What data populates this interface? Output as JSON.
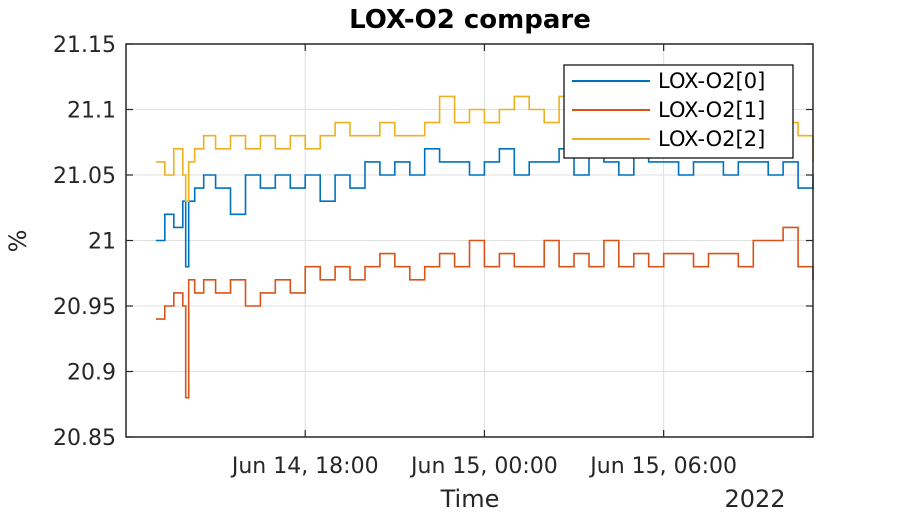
{
  "chart_data": {
    "type": "line",
    "title": "LOX-O2 compare",
    "xlabel": "Time",
    "ylabel": "%",
    "x_year_label": "2022",
    "x_unit": "hours since Jun 14, 00:00",
    "xlim": [
      12.0,
      35.0
    ],
    "ylim": [
      20.85,
      21.15
    ],
    "xticks": [
      {
        "value": 18,
        "label": "Jun 14, 18:00"
      },
      {
        "value": 24,
        "label": "Jun 15, 00:00"
      },
      {
        "value": 30,
        "label": "Jun 15, 06:00"
      }
    ],
    "yticks": [
      {
        "value": 21.15,
        "label": "21.15"
      },
      {
        "value": 21.1,
        "label": "21.1"
      },
      {
        "value": 21.05,
        "label": "21.05"
      },
      {
        "value": 21.0,
        "label": "21"
      },
      {
        "value": 20.95,
        "label": "20.95"
      },
      {
        "value": 20.9,
        "label": "20.9"
      },
      {
        "value": 20.85,
        "label": "20.85"
      }
    ],
    "grid": true,
    "legend_location": "top-right",
    "series": [
      {
        "name": "LOX-O2[0]",
        "color": "#0072BD",
        "x": [
          13.0,
          13.3,
          13.6,
          13.9,
          14.0,
          14.1,
          14.3,
          14.6,
          15.0,
          15.5,
          16.0,
          16.5,
          17.0,
          17.5,
          18.0,
          18.5,
          19.0,
          19.5,
          20.0,
          20.5,
          21.0,
          21.5,
          22.0,
          22.5,
          23.0,
          23.5,
          24.0,
          24.5,
          25.0,
          25.5,
          26.0,
          26.5,
          27.0,
          27.5,
          28.0,
          28.5,
          29.0,
          29.5,
          30.0,
          30.5,
          31.0,
          31.5,
          32.0,
          32.5,
          33.0,
          33.5,
          34.0,
          34.5,
          35.0
        ],
        "y": [
          21.0,
          21.02,
          21.01,
          21.03,
          20.98,
          21.03,
          21.04,
          21.05,
          21.04,
          21.02,
          21.05,
          21.04,
          21.05,
          21.04,
          21.05,
          21.03,
          21.05,
          21.04,
          21.06,
          21.05,
          21.06,
          21.05,
          21.07,
          21.06,
          21.06,
          21.05,
          21.06,
          21.07,
          21.05,
          21.06,
          21.06,
          21.07,
          21.05,
          21.08,
          21.06,
          21.05,
          21.07,
          21.06,
          21.06,
          21.05,
          21.06,
          21.06,
          21.05,
          21.06,
          21.06,
          21.05,
          21.06,
          21.04,
          21.05
        ]
      },
      {
        "name": "LOX-O2[1]",
        "color": "#D95319",
        "x": [
          13.0,
          13.3,
          13.6,
          13.9,
          14.0,
          14.1,
          14.3,
          14.6,
          15.0,
          15.5,
          16.0,
          16.5,
          17.0,
          17.5,
          18.0,
          18.5,
          19.0,
          19.5,
          20.0,
          20.5,
          21.0,
          21.5,
          22.0,
          22.5,
          23.0,
          23.5,
          24.0,
          24.5,
          25.0,
          25.5,
          26.0,
          26.5,
          27.0,
          27.5,
          28.0,
          28.5,
          29.0,
          29.5,
          30.0,
          30.5,
          31.0,
          31.5,
          32.0,
          32.5,
          33.0,
          33.5,
          34.0,
          34.5,
          35.0
        ],
        "y": [
          20.94,
          20.95,
          20.96,
          20.95,
          20.88,
          20.97,
          20.96,
          20.97,
          20.96,
          20.97,
          20.95,
          20.96,
          20.97,
          20.96,
          20.98,
          20.97,
          20.98,
          20.97,
          20.98,
          20.99,
          20.98,
          20.97,
          20.98,
          20.99,
          20.98,
          21.0,
          20.98,
          20.99,
          20.98,
          20.98,
          21.0,
          20.98,
          20.99,
          20.98,
          21.0,
          20.98,
          20.99,
          20.98,
          20.99,
          20.99,
          20.98,
          20.99,
          20.99,
          20.98,
          21.0,
          21.0,
          21.01,
          20.98,
          20.97
        ]
      },
      {
        "name": "LOX-O2[2]",
        "color": "#EDB120",
        "x": [
          13.0,
          13.3,
          13.6,
          13.9,
          14.0,
          14.1,
          14.3,
          14.6,
          15.0,
          15.5,
          16.0,
          16.5,
          17.0,
          17.5,
          18.0,
          18.5,
          19.0,
          19.5,
          20.0,
          20.5,
          21.0,
          21.5,
          22.0,
          22.5,
          23.0,
          23.5,
          24.0,
          24.5,
          25.0,
          25.5,
          26.0,
          26.5,
          27.0,
          27.5,
          28.0,
          28.5,
          29.0,
          29.5,
          30.0,
          30.5,
          31.0,
          31.5,
          32.0,
          32.5,
          33.0,
          33.5,
          34.0,
          34.5,
          35.0
        ],
        "y": [
          21.06,
          21.05,
          21.07,
          21.05,
          21.03,
          21.06,
          21.07,
          21.08,
          21.07,
          21.08,
          21.07,
          21.08,
          21.07,
          21.08,
          21.07,
          21.08,
          21.09,
          21.08,
          21.08,
          21.09,
          21.08,
          21.08,
          21.09,
          21.11,
          21.09,
          21.1,
          21.09,
          21.1,
          21.11,
          21.1,
          21.09,
          21.11,
          21.1,
          21.09,
          21.1,
          21.11,
          21.09,
          21.08,
          21.1,
          21.09,
          21.08,
          21.09,
          21.08,
          21.09,
          21.08,
          21.09,
          21.09,
          21.08,
          21.06
        ]
      }
    ]
  }
}
